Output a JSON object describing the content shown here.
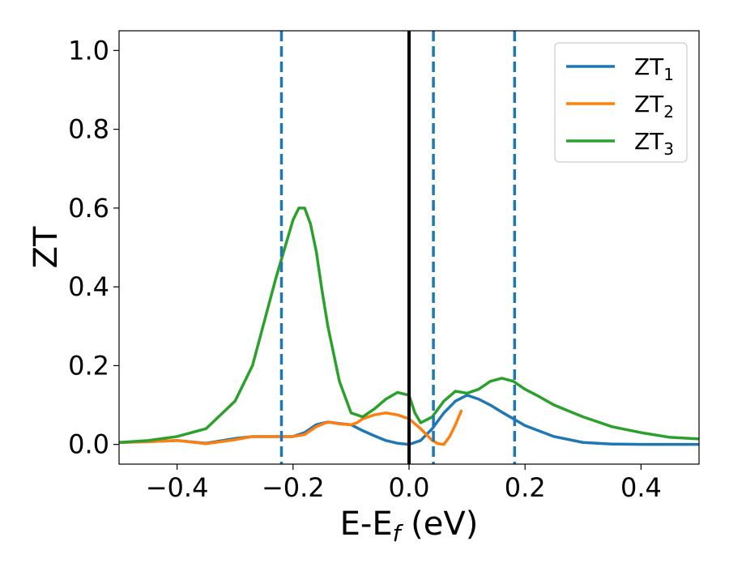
{
  "chart_data": {
    "type": "line",
    "xlabel": "E-E_f (eV)",
    "ylabel": "ZT",
    "xlim": [
      -0.5,
      0.5
    ],
    "ylim": [
      -0.05,
      1.05
    ],
    "x_ticks": [
      -0.4,
      -0.2,
      0.0,
      0.2,
      0.4
    ],
    "x_tick_labels": [
      "−0.4",
      "−0.2",
      "0.0",
      "0.2",
      "0.4"
    ],
    "y_ticks": [
      0.0,
      0.2,
      0.4,
      0.6,
      0.8,
      1.0
    ],
    "y_tick_labels": [
      "0.0",
      "0.2",
      "0.4",
      "0.6",
      "0.8",
      "1.0"
    ],
    "legend_position": "top-right",
    "vertical_lines": [
      {
        "x": 0.0,
        "color": "#000000",
        "style": "solid"
      },
      {
        "x": -0.22,
        "color": "#1f77b4",
        "style": "dashed"
      },
      {
        "x": 0.042,
        "color": "#1f77b4",
        "style": "dashed"
      },
      {
        "x": 0.182,
        "color": "#1f77b4",
        "style": "dashed"
      }
    ],
    "series": [
      {
        "name": "ZT1",
        "label_main": "ZT",
        "label_sub": "1",
        "color": "#1f77b4",
        "x": [
          -0.5,
          -0.45,
          -0.4,
          -0.35,
          -0.3,
          -0.27,
          -0.22,
          -0.2,
          -0.18,
          -0.16,
          -0.14,
          -0.12,
          -0.1,
          -0.08,
          -0.06,
          -0.04,
          -0.02,
          0.0,
          0.02,
          0.04,
          0.06,
          0.08,
          0.1,
          0.12,
          0.14,
          0.16,
          0.18,
          0.2,
          0.25,
          0.3,
          0.35,
          0.4,
          0.45,
          0.5
        ],
        "y": [
          0.005,
          0.007,
          0.01,
          0.003,
          0.015,
          0.02,
          0.02,
          0.02,
          0.03,
          0.05,
          0.057,
          0.053,
          0.05,
          0.035,
          0.022,
          0.01,
          0.003,
          0.0,
          0.01,
          0.04,
          0.08,
          0.11,
          0.125,
          0.115,
          0.1,
          0.082,
          0.065,
          0.048,
          0.02,
          0.005,
          0.001,
          0.0,
          0.0,
          0.0
        ]
      },
      {
        "name": "ZT2",
        "label_main": "ZT",
        "label_sub": "2",
        "color": "#ff7f0e",
        "x": [
          -0.5,
          -0.45,
          -0.4,
          -0.35,
          -0.3,
          -0.27,
          -0.22,
          -0.2,
          -0.18,
          -0.16,
          -0.14,
          -0.12,
          -0.1,
          -0.09,
          -0.08,
          -0.06,
          -0.04,
          -0.02,
          0.0,
          0.02,
          0.04,
          0.05,
          0.06,
          0.07,
          0.08,
          0.09
        ],
        "y": [
          0.005,
          0.007,
          0.01,
          0.002,
          0.012,
          0.02,
          0.02,
          0.02,
          0.025,
          0.045,
          0.057,
          0.052,
          0.05,
          0.055,
          0.065,
          0.075,
          0.08,
          0.075,
          0.065,
          0.04,
          0.01,
          0.002,
          0.0,
          0.02,
          0.05,
          0.085
        ]
      },
      {
        "name": "ZT3",
        "label_main": "ZT",
        "label_sub": "3",
        "color": "#2ca02c",
        "x": [
          -0.5,
          -0.45,
          -0.4,
          -0.35,
          -0.3,
          -0.27,
          -0.25,
          -0.23,
          -0.21,
          -0.2,
          -0.19,
          -0.18,
          -0.17,
          -0.16,
          -0.15,
          -0.14,
          -0.12,
          -0.1,
          -0.08,
          -0.06,
          -0.04,
          -0.02,
          0.0,
          0.01,
          0.02,
          0.04,
          0.06,
          0.08,
          0.1,
          0.12,
          0.14,
          0.16,
          0.18,
          0.2,
          0.22,
          0.25,
          0.3,
          0.35,
          0.4,
          0.45,
          0.5
        ],
        "y": [
          0.005,
          0.01,
          0.02,
          0.04,
          0.11,
          0.2,
          0.31,
          0.42,
          0.52,
          0.57,
          0.6,
          0.6,
          0.56,
          0.49,
          0.39,
          0.3,
          0.16,
          0.08,
          0.07,
          0.09,
          0.115,
          0.132,
          0.125,
          0.08,
          0.055,
          0.07,
          0.11,
          0.135,
          0.13,
          0.14,
          0.16,
          0.168,
          0.16,
          0.14,
          0.125,
          0.1,
          0.07,
          0.045,
          0.03,
          0.018,
          0.014
        ]
      }
    ]
  }
}
